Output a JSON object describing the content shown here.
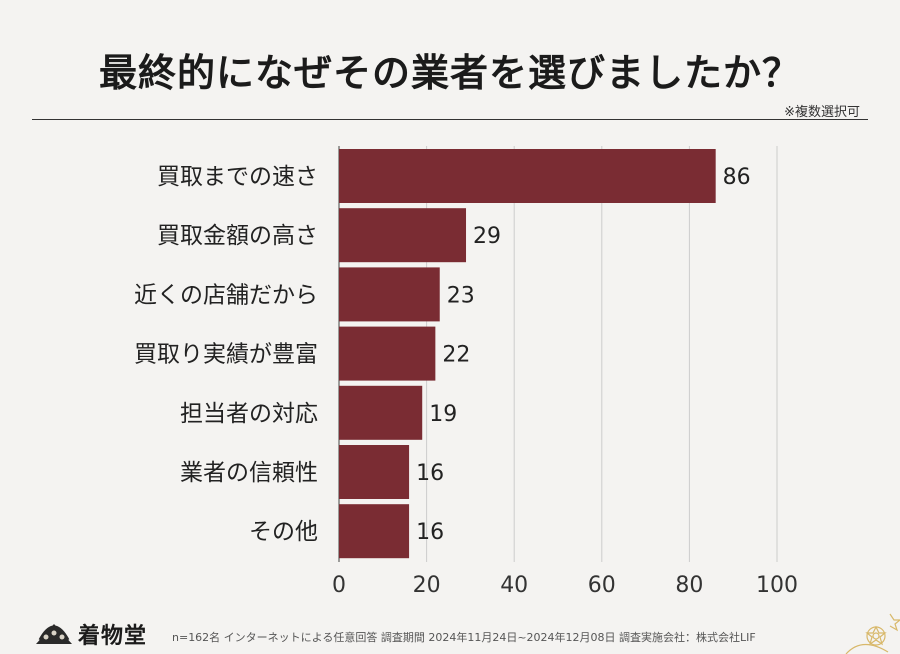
{
  "header": {
    "title": "最終的になぜその業者を選びましたか？",
    "note": "※複数選択可"
  },
  "footer": {
    "logo": "着物堂",
    "credit": "n=162名 インターネットによる任意回答 調査期間 2024年11月24日~2024年12月08日 調査実施会社：株式会社LIF"
  },
  "colors": {
    "bar": "#7a2c33",
    "grid": "#cccccc",
    "axis": "#444444"
  },
  "chart_data": {
    "type": "bar",
    "orientation": "horizontal",
    "title": "最終的になぜその業者を選びましたか？",
    "categories": [
      "買取までの速さ",
      "買取金額の高さ",
      "近くの店舗だから",
      "買取り実績が豊富",
      "担当者の対応",
      "業者の信頼性",
      "その他"
    ],
    "values": [
      86,
      29,
      23,
      22,
      19,
      16,
      16
    ],
    "xlim": [
      0,
      100
    ],
    "xticks": [
      0,
      20,
      40,
      60,
      80,
      100
    ],
    "grid": true,
    "xlabel": "",
    "ylabel": ""
  }
}
